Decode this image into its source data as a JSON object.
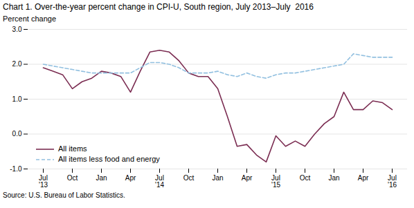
{
  "chart_data": {
    "type": "line",
    "title": "Chart 1. Over-the-year percent change in CPI-U, South region, July 2013–July  2016",
    "ylabel": "Percent change",
    "source": "Source: U.S. Bureau of Labor Statistics.",
    "categories": [
      "Jul\n'13",
      null,
      null,
      "Oct",
      null,
      null,
      "Jan",
      null,
      null,
      "Apr",
      null,
      null,
      "Jul\n'14",
      null,
      null,
      "Oct",
      null,
      null,
      "Jan",
      null,
      null,
      "Apr",
      null,
      null,
      "Jul\n'15",
      null,
      null,
      "Oct",
      null,
      null,
      "Jan",
      null,
      null,
      "Apr",
      null,
      null,
      "Jul\n'16"
    ],
    "series": [
      {
        "name": "All items",
        "color": "#7b2d52",
        "line_style": "solid",
        "values": [
          1.9,
          1.8,
          1.7,
          1.3,
          1.5,
          1.6,
          1.8,
          1.75,
          1.65,
          1.2,
          1.8,
          2.35,
          2.4,
          2.35,
          2.1,
          1.75,
          1.65,
          1.65,
          1.3,
          0.5,
          -0.35,
          -0.3,
          -0.6,
          -0.8,
          -0.05,
          -0.35,
          -0.2,
          -0.35,
          0.0,
          0.3,
          0.5,
          1.2,
          0.7,
          0.7,
          0.95,
          0.9,
          0.7
        ]
      },
      {
        "name": "All items less food and energy",
        "color": "#92c0e0",
        "line_style": "dashed",
        "values": [
          2.0,
          1.95,
          1.9,
          1.85,
          1.8,
          1.75,
          1.75,
          1.75,
          1.75,
          1.75,
          1.9,
          2.05,
          2.05,
          2.0,
          1.9,
          1.75,
          1.75,
          1.75,
          1.8,
          1.7,
          1.65,
          1.75,
          1.65,
          1.6,
          1.7,
          1.75,
          1.75,
          1.8,
          1.85,
          1.9,
          1.95,
          2.0,
          2.3,
          2.25,
          2.2,
          2.2,
          2.2
        ]
      }
    ],
    "ylim": [
      -1.0,
      3.0
    ],
    "yticks": [
      {
        "value": -1.0,
        "label": "-1.0"
      },
      {
        "value": 0.0,
        "label": "0.0"
      },
      {
        "value": 1.0,
        "label": "1.0"
      },
      {
        "value": 2.0,
        "label": "2.0"
      },
      {
        "value": 3.0,
        "label": "3.0"
      }
    ],
    "grid": true,
    "legend": "lower left"
  }
}
